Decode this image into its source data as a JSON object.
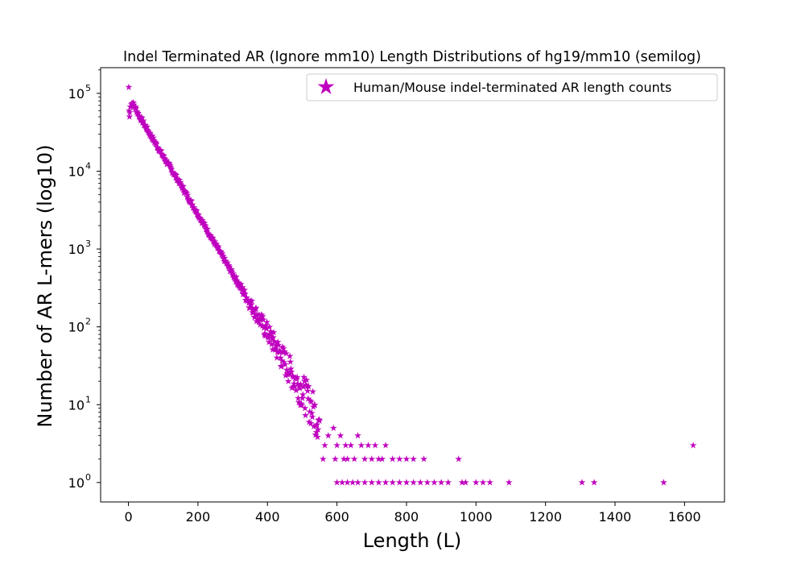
{
  "chart_data": {
    "type": "scatter",
    "title": "Indel Terminated AR (Ignore mm10) Length Distributions of hg19/mm10 (semilog)",
    "xlabel": "Length (L)",
    "ylabel": "Number of AR L-mers (log10)",
    "xlim": [
      -80,
      1715
    ],
    "ylim_log10": [
      -0.25,
      5.33
    ],
    "y_scale": "log",
    "grid": false,
    "legend_position": "top-right",
    "marker": "star",
    "color": "#bf00bf",
    "x_ticks": [
      0,
      200,
      400,
      600,
      800,
      1000,
      1200,
      1400,
      1600
    ],
    "x_tick_labels": [
      "0",
      "200",
      "400",
      "600",
      "800",
      "1000",
      "1200",
      "1400",
      "1600"
    ],
    "y_tick_exponents": [
      0,
      1,
      2,
      3,
      4,
      5
    ],
    "y_tick_base": "10",
    "series": [
      {
        "name": "Human/Mouse indel-terminated AR length counts",
        "trend_points": [
          [
            1,
            120000
          ],
          [
            2,
            60000
          ],
          [
            3,
            50000
          ],
          [
            5,
            65000
          ],
          [
            8,
            74000
          ],
          [
            10,
            75000
          ],
          [
            15,
            72000
          ],
          [
            20,
            65000
          ],
          [
            30,
            52000
          ],
          [
            40,
            44000
          ],
          [
            60,
            31000
          ],
          [
            80,
            22000
          ],
          [
            100,
            15500
          ],
          [
            150,
            6800
          ],
          [
            200,
            2800
          ],
          [
            250,
            1150
          ],
          [
            300,
            480
          ],
          [
            350,
            200
          ],
          [
            400,
            85
          ],
          [
            450,
            35
          ],
          [
            500,
            15
          ],
          [
            550,
            6
          ]
        ],
        "sparse_points": [
          [
            560,
            2
          ],
          [
            565,
            3
          ],
          [
            575,
            4
          ],
          [
            590,
            5
          ],
          [
            595,
            2
          ],
          [
            600,
            3
          ],
          [
            610,
            4
          ],
          [
            620,
            2
          ],
          [
            625,
            3
          ],
          [
            630,
            2
          ],
          [
            640,
            3
          ],
          [
            650,
            2
          ],
          [
            660,
            4
          ],
          [
            670,
            3
          ],
          [
            680,
            2
          ],
          [
            690,
            3
          ],
          [
            700,
            2
          ],
          [
            710,
            3
          ],
          [
            720,
            2
          ],
          [
            730,
            2
          ],
          [
            740,
            3
          ],
          [
            760,
            2
          ],
          [
            780,
            2
          ],
          [
            800,
            2
          ],
          [
            820,
            2
          ],
          [
            850,
            2
          ],
          [
            950,
            2
          ],
          [
            1625,
            3
          ],
          [
            600,
            1
          ],
          [
            615,
            1
          ],
          [
            630,
            1
          ],
          [
            645,
            1
          ],
          [
            660,
            1
          ],
          [
            680,
            1
          ],
          [
            700,
            1
          ],
          [
            720,
            1
          ],
          [
            740,
            1
          ],
          [
            760,
            1
          ],
          [
            780,
            1
          ],
          [
            800,
            1
          ],
          [
            820,
            1
          ],
          [
            840,
            1
          ],
          [
            860,
            1
          ],
          [
            880,
            1
          ],
          [
            900,
            1
          ],
          [
            920,
            1
          ],
          [
            960,
            1
          ],
          [
            970,
            1
          ],
          [
            1000,
            1
          ],
          [
            1020,
            1
          ],
          [
            1040,
            1
          ],
          [
            1095,
            1
          ],
          [
            1305,
            1
          ],
          [
            1340,
            1
          ],
          [
            1540,
            1
          ]
        ]
      }
    ]
  }
}
